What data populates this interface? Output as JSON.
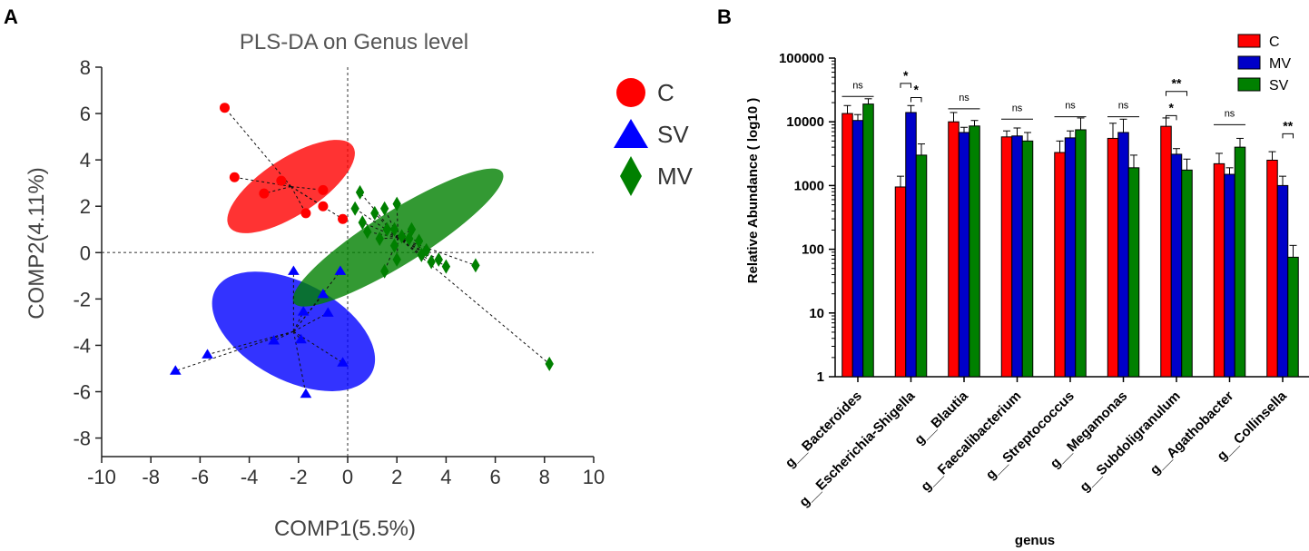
{
  "chart_data": [
    {
      "type": "scatter",
      "panel_label": "A",
      "title": "PLS-DA on Genus level",
      "xlabel": "COMP1(5.5%)",
      "ylabel": "COMP2(4.11%)",
      "xlim": [
        -10,
        10
      ],
      "ylim": [
        -8.8,
        8
      ],
      "xticks": [
        "-10",
        "-8",
        "-6",
        "-4",
        "-2",
        "0",
        "2",
        "4",
        "6",
        "8",
        "10"
      ],
      "yticks": [
        "8",
        "6",
        "4",
        "2",
        "0",
        "-2",
        "-4",
        "-6",
        "-8"
      ],
      "legend": [
        {
          "label": "C",
          "color": "#ff0000",
          "marker": "circle"
        },
        {
          "label": "SV",
          "color": "#0000ff",
          "marker": "triangle"
        },
        {
          "label": "MV",
          "color": "#008000",
          "marker": "diamond"
        }
      ],
      "groups": [
        {
          "name": "C",
          "color": "#ff0000",
          "marker": "circle",
          "ellipse": {
            "cx": -2.3,
            "cy": 2.85,
            "rx": 3.0,
            "ry": 1.22,
            "angle_deg": -33
          },
          "centroid": [
            -2.3,
            2.85
          ],
          "points": [
            [
              -5.0,
              6.25
            ],
            [
              -4.6,
              3.25
            ],
            [
              -3.4,
              2.55
            ],
            [
              -2.7,
              3.1
            ],
            [
              -1.7,
              1.7
            ],
            [
              -1.0,
              2.7
            ],
            [
              -1.0,
              2.0
            ],
            [
              -0.2,
              1.45
            ]
          ]
        },
        {
          "name": "SV",
          "color": "#0000ff",
          "marker": "triangle",
          "ellipse": {
            "cx": -2.2,
            "cy": -3.4,
            "rx": 3.6,
            "ry": 2.1,
            "angle_deg": 28
          },
          "centroid": [
            -2.2,
            -3.4
          ],
          "points": [
            [
              -7.0,
              -5.1
            ],
            [
              -5.7,
              -4.4
            ],
            [
              -3.0,
              -3.8
            ],
            [
              -2.2,
              -0.8
            ],
            [
              -1.8,
              -2.55
            ],
            [
              -1.7,
              -6.1
            ],
            [
              -1.9,
              -3.75
            ],
            [
              -1.0,
              -1.8
            ],
            [
              -0.8,
              -2.6
            ],
            [
              -0.3,
              -0.8
            ],
            [
              -0.2,
              -4.75
            ]
          ]
        },
        {
          "name": "MV",
          "color": "#008000",
          "marker": "diamond",
          "ellipse": {
            "cx": 2.05,
            "cy": 0.65,
            "rx": 5.0,
            "ry": 1.15,
            "angle_deg": -32
          },
          "centroid": [
            2.05,
            0.65
          ],
          "points": [
            [
              0.5,
              2.6
            ],
            [
              0.3,
              1.9
            ],
            [
              0.6,
              1.3
            ],
            [
              0.8,
              0.9
            ],
            [
              1.1,
              1.7
            ],
            [
              1.3,
              0.6
            ],
            [
              1.5,
              1.9
            ],
            [
              1.6,
              1.0
            ],
            [
              1.9,
              0.3
            ],
            [
              2.0,
              2.1
            ],
            [
              2.0,
              -0.3
            ],
            [
              1.9,
              1.0
            ],
            [
              2.2,
              0.7
            ],
            [
              2.5,
              0.6
            ],
            [
              2.6,
              1.0
            ],
            [
              2.9,
              0.5
            ],
            [
              3.0,
              -0.1
            ],
            [
              3.2,
              0.1
            ],
            [
              3.4,
              -0.4
            ],
            [
              3.7,
              -0.3
            ],
            [
              4.0,
              -0.6
            ],
            [
              1.5,
              -0.8
            ],
            [
              5.2,
              -0.55
            ],
            [
              8.2,
              -4.8
            ]
          ]
        }
      ]
    },
    {
      "type": "bar",
      "panel_label": "B",
      "scale": "log10",
      "xlabel": "genus",
      "ylabel": "Relative Abundance ( log10 )",
      "ylim": [
        1,
        100000
      ],
      "yticks": [
        "100000",
        "10000",
        "1000",
        "100",
        "10",
        "1"
      ],
      "categories": [
        "g__Bacteroides",
        "g__Escherichia-Shigella",
        "g__Blautia",
        "g__Faecalibacterium",
        "g__Streptococcus",
        "g__Megamonas",
        "g__Subdoligranulum",
        "g__Agathobacter",
        "g__Collinsella"
      ],
      "series": [
        {
          "name": "C",
          "color": "#ff0000",
          "values": [
            13500,
            950,
            10000,
            5800,
            3300,
            5500,
            8500,
            2200,
            2500
          ],
          "errors": [
            18000,
            1400,
            14000,
            7200,
            5000,
            9500,
            11500,
            3200,
            3400
          ]
        },
        {
          "name": "MV",
          "color": "#0000c8",
          "values": [
            10500,
            14000,
            6800,
            6000,
            5600,
            6800,
            3100,
            1500,
            1000
          ],
          "errors": [
            13000,
            18000,
            8200,
            8000,
            7200,
            11000,
            3800,
            1900,
            1400
          ]
        },
        {
          "name": "SV",
          "color": "#008000",
          "values": [
            19000,
            3000,
            8600,
            5000,
            7500,
            1900,
            1750,
            4000,
            75
          ],
          "errors": [
            23000,
            4500,
            10500,
            6800,
            11500,
            3000,
            2600,
            5500,
            115
          ]
        }
      ],
      "legend": [
        "C",
        "MV",
        "SV"
      ],
      "significance": [
        {
          "category": 0,
          "label": "ns",
          "from": "C",
          "to": "SV",
          "y": 25000
        },
        {
          "category": 1,
          "label": "*",
          "from": "C",
          "to": "MV",
          "y": 40000
        },
        {
          "category": 1,
          "label": "*",
          "from": "MV",
          "to": "SV",
          "y": 24000
        },
        {
          "category": 2,
          "label": "ns",
          "from": "C",
          "to": "SV",
          "y": 16000
        },
        {
          "category": 3,
          "label": "ns",
          "from": "C",
          "to": "SV",
          "y": 11000
        },
        {
          "category": 4,
          "label": "ns",
          "from": "C",
          "to": "SV",
          "y": 12000
        },
        {
          "category": 5,
          "label": "ns",
          "from": "C",
          "to": "SV",
          "y": 12000
        },
        {
          "category": 6,
          "label": "**",
          "from": "C",
          "to": "SV",
          "y": 30000
        },
        {
          "category": 6,
          "label": "*",
          "from": "C",
          "to": "MV",
          "y": 12500
        },
        {
          "category": 7,
          "label": "ns",
          "from": "C",
          "to": "SV",
          "y": 9000
        },
        {
          "category": 8,
          "label": "**",
          "from": "MV",
          "to": "SV",
          "y": 6500
        }
      ]
    }
  ]
}
